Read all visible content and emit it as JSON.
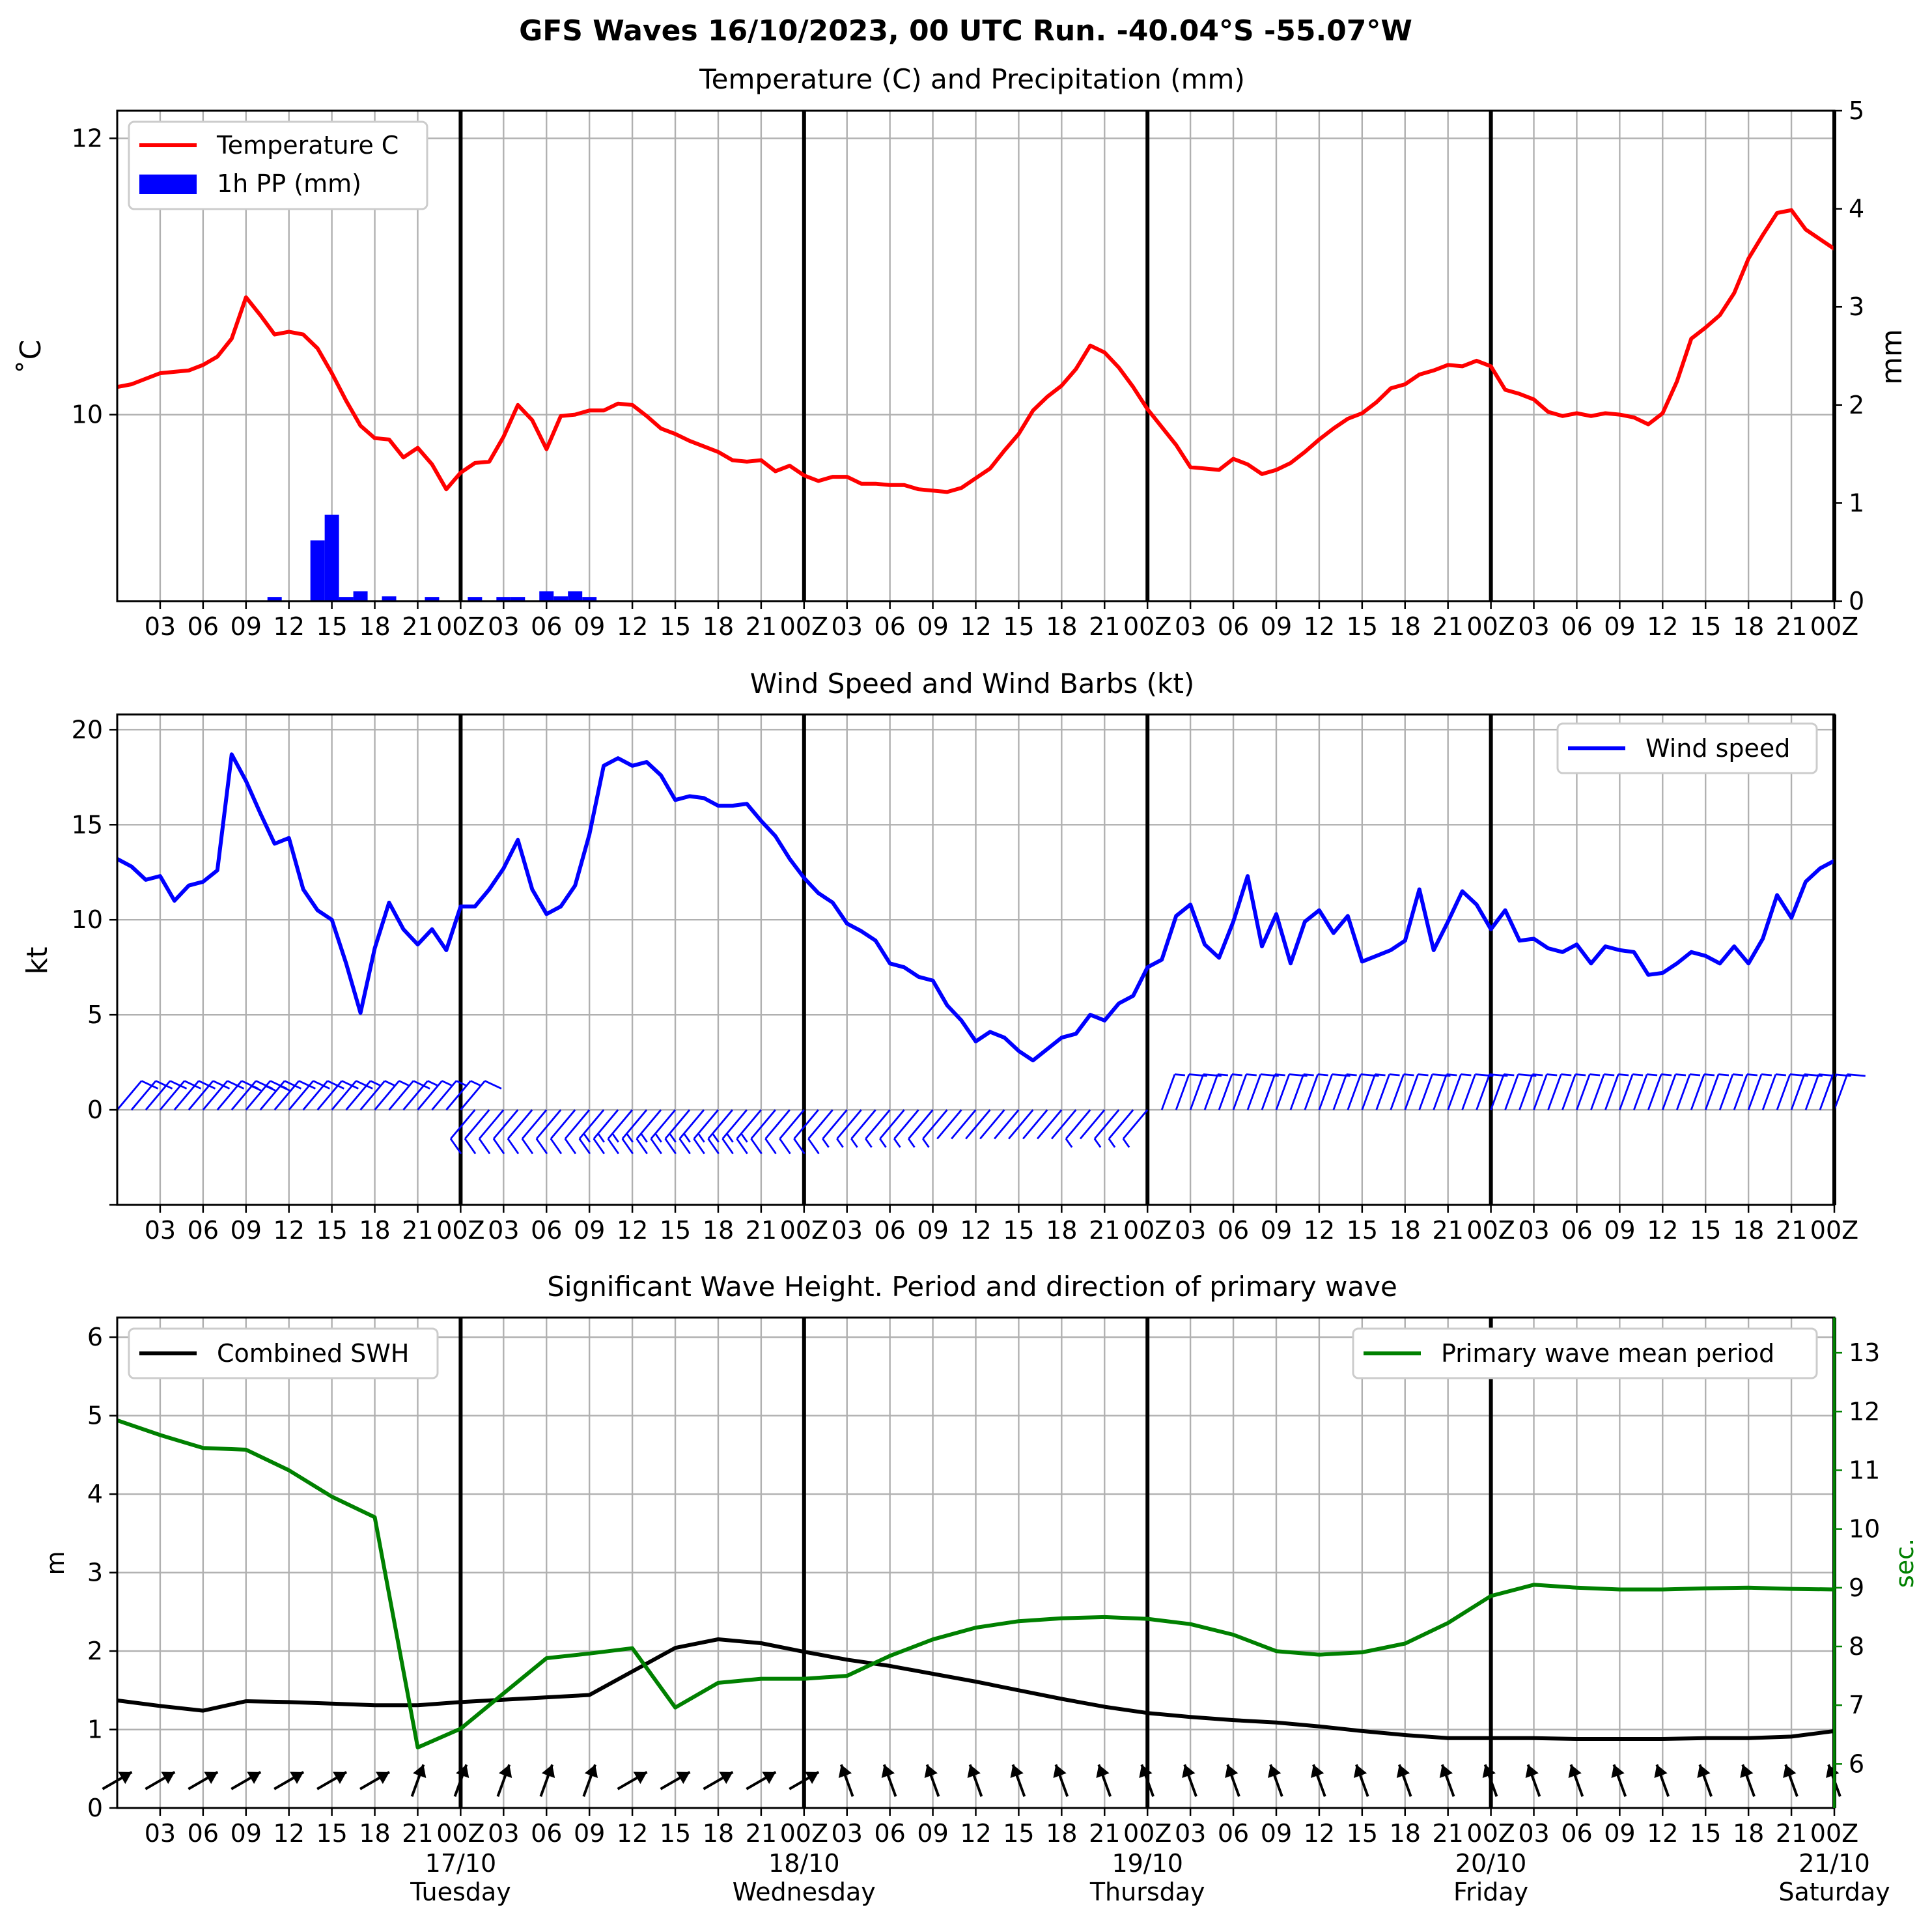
{
  "figure_title": "GFS Waves 16/10/2023, 00 UTC Run. -40.04°S -55.07°W",
  "x_ticks": [
    "03",
    "06",
    "09",
    "12",
    "15",
    "18",
    "21",
    "00Z",
    "03",
    "06",
    "09",
    "12",
    "15",
    "18",
    "21",
    "00Z",
    "03",
    "06",
    "09",
    "12",
    "15",
    "18",
    "21",
    "00Z",
    "03",
    "06",
    "09",
    "12",
    "15",
    "18",
    "21",
    "00Z",
    "03",
    "06",
    "09",
    "12",
    "15",
    "18",
    "21",
    "00Z"
  ],
  "day_labels": [
    {
      "date": "17/10",
      "day": "Tuesday"
    },
    {
      "date": "18/10",
      "day": "Wednesday"
    },
    {
      "date": "19/10",
      "day": "Thursday"
    },
    {
      "date": "20/10",
      "day": "Friday"
    },
    {
      "date": "21/10",
      "day": "Saturday"
    }
  ],
  "colors": {
    "temperature": "#ff0000",
    "precip": "#0000ff",
    "wind": "#0000ff",
    "swh": "#000000",
    "period": "#008000"
  },
  "chart_data": [
    {
      "type": "line",
      "title": "Temperature (C) and Precipitation (mm)",
      "ylabel": "˚C",
      "ylabel_right": "mm",
      "x_hours_range": [
        0,
        120
      ],
      "ylim": [
        8.65,
        12.2
      ],
      "ylim_right": [
        0,
        5
      ],
      "yticks": [
        10,
        12
      ],
      "yticks_right": [
        0,
        1,
        2,
        3,
        4,
        5
      ],
      "legend": {
        "placement": "upper-left",
        "entries": [
          "Temperature C",
          "1h PP (mm)"
        ]
      },
      "grid": true,
      "series": [
        {
          "name": "Temperature C",
          "color": "#ff0000",
          "x": [
            0,
            1,
            2,
            3,
            4,
            5,
            6,
            7,
            8,
            9,
            10,
            11,
            12,
            13,
            14,
            15,
            16,
            17,
            18,
            19,
            20,
            21,
            22,
            23,
            24,
            25,
            26,
            27,
            28,
            29,
            30,
            31,
            32,
            33,
            34,
            35,
            36,
            37,
            38,
            39,
            40,
            41,
            42,
            43,
            44,
            45,
            46,
            47,
            48,
            49,
            50,
            51,
            52,
            53,
            54,
            55,
            56,
            57,
            58,
            59,
            60,
            61,
            62,
            63,
            64,
            65,
            66,
            67,
            68,
            69,
            70,
            71,
            72,
            73,
            74,
            75,
            76,
            77,
            78,
            79,
            80,
            81,
            82,
            83,
            84,
            85,
            86,
            87,
            88,
            89,
            90,
            91,
            92,
            93,
            94,
            95,
            96,
            97,
            98,
            99,
            100,
            101,
            102,
            103,
            104,
            105,
            106,
            107,
            108,
            109,
            110,
            111,
            112,
            113,
            114,
            115,
            116,
            117,
            118,
            119,
            120
          ],
          "y": [
            10.2,
            10.22,
            10.26,
            10.3,
            10.31,
            10.32,
            10.36,
            10.42,
            10.55,
            10.85,
            10.72,
            10.58,
            10.6,
            10.58,
            10.48,
            10.3,
            10.1,
            9.92,
            9.83,
            9.82,
            9.69,
            9.76,
            9.64,
            9.46,
            9.58,
            9.65,
            9.66,
            9.84,
            10.07,
            9.96,
            9.75,
            9.99,
            10.0,
            10.03,
            10.03,
            10.08,
            10.07,
            9.99,
            9.9,
            9.86,
            9.81,
            9.77,
            9.73,
            9.67,
            9.66,
            9.67,
            9.59,
            9.63,
            9.56,
            9.52,
            9.55,
            9.55,
            9.5,
            9.5,
            9.49,
            9.49,
            9.46,
            9.45,
            9.44,
            9.47,
            9.54,
            9.61,
            9.74,
            9.86,
            10.03,
            10.13,
            10.21,
            10.33,
            10.5,
            10.45,
            10.34,
            10.2,
            10.04,
            9.91,
            9.78,
            9.62,
            9.61,
            9.6,
            9.68,
            9.64,
            9.57,
            9.6,
            9.65,
            9.73,
            9.82,
            9.9,
            9.97,
            10.01,
            10.09,
            10.19,
            10.22,
            10.29,
            10.32,
            10.36,
            10.35,
            10.39,
            10.35,
            10.18,
            10.15,
            10.11,
            10.02,
            9.99,
            10.01,
            9.99,
            10.01,
            10.0,
            9.98,
            9.93,
            10.01,
            10.24,
            10.55,
            10.63,
            10.72,
            10.88,
            11.13,
            11.3,
            11.46,
            11.48,
            11.34,
            11.27,
            11.2
          ]
        },
        {
          "name": "1h PP (mm)",
          "color": "#0000ff",
          "kind": "bar",
          "x": [
            11,
            12,
            13,
            14,
            15,
            16,
            17,
            18,
            19,
            20,
            21,
            22,
            23,
            24,
            25,
            26,
            27,
            28,
            29,
            30,
            31,
            32,
            33,
            34
          ],
          "y": [
            0.04,
            0,
            0,
            0.62,
            0.88,
            0.04,
            0.1,
            0,
            0.05,
            0,
            0,
            0.04,
            0,
            0,
            0.04,
            0,
            0.04,
            0.04,
            0,
            0.1,
            0.05,
            0.1,
            0.04,
            0
          ]
        }
      ]
    },
    {
      "type": "line",
      "title": "Wind Speed and Wind Barbs (kt)",
      "ylabel": "kt",
      "x_hours_range": [
        0,
        120
      ],
      "ylim": [
        -5,
        20.8
      ],
      "yticks": [
        0,
        5,
        10,
        15,
        20
      ],
      "legend": {
        "placement": "upper-right",
        "entries": [
          "Wind speed"
        ]
      },
      "grid": true,
      "series": [
        {
          "name": "Wind speed",
          "color": "#0000ff",
          "x": [
            0,
            1,
            2,
            3,
            4,
            5,
            6,
            7,
            8,
            9,
            10,
            11,
            12,
            13,
            14,
            15,
            16,
            17,
            18,
            19,
            20,
            21,
            22,
            23,
            24,
            25,
            26,
            27,
            28,
            29,
            30,
            31,
            32,
            33,
            34,
            35,
            36,
            37,
            38,
            39,
            40,
            41,
            42,
            43,
            44,
            45,
            46,
            47,
            48,
            49,
            50,
            51,
            52,
            53,
            54,
            55,
            56,
            57,
            58,
            59,
            60,
            61,
            62,
            63,
            64,
            65,
            66,
            67,
            68,
            69,
            70,
            71,
            72,
            73,
            74,
            75,
            76,
            77,
            78,
            79,
            80,
            81,
            82,
            83,
            84,
            85,
            86,
            87,
            88,
            89,
            90,
            91,
            92,
            93,
            94,
            95,
            96,
            97,
            98,
            99,
            100,
            101,
            102,
            103,
            104,
            105,
            106,
            107,
            108,
            109,
            110,
            111,
            112,
            113,
            114,
            115,
            116,
            117,
            118,
            119,
            120
          ],
          "y": [
            13.2,
            12.8,
            12.1,
            12.3,
            11.0,
            11.8,
            12.0,
            12.6,
            18.7,
            17.3,
            15.6,
            14.0,
            14.3,
            11.6,
            10.5,
            10.0,
            7.7,
            5.1,
            8.5,
            10.9,
            9.5,
            8.7,
            9.5,
            8.4,
            10.7,
            10.7,
            11.6,
            12.7,
            14.2,
            11.6,
            10.3,
            10.7,
            11.8,
            14.5,
            18.1,
            18.5,
            18.1,
            18.3,
            17.6,
            16.3,
            16.5,
            16.4,
            16.0,
            16.0,
            16.1,
            15.2,
            14.4,
            13.2,
            12.2,
            11.4,
            10.9,
            9.8,
            9.4,
            8.9,
            7.7,
            7.5,
            7.0,
            6.8,
            5.5,
            4.7,
            3.6,
            4.1,
            3.8,
            3.1,
            2.6,
            3.2,
            3.8,
            4.0,
            5.0,
            4.7,
            5.6,
            6.0,
            7.5,
            7.9,
            10.2,
            10.8,
            8.7,
            8.0,
            9.9,
            12.3,
            8.6,
            10.3,
            7.7,
            9.9,
            10.5,
            9.3,
            10.2,
            7.8,
            8.1,
            8.4,
            8.9,
            11.6,
            8.4,
            9.9,
            11.5,
            10.8,
            9.5,
            10.5,
            8.9,
            9.0,
            8.5,
            8.3,
            8.7,
            7.7,
            8.6,
            8.4,
            8.3,
            7.1,
            7.2,
            7.7,
            8.3,
            8.1,
            7.7,
            8.6,
            7.7,
            9.0,
            11.3,
            10.1,
            12.0,
            12.7,
            13.1
          ]
        }
      ],
      "barbs_dir_deg": [
        40,
        40,
        40,
        40,
        40,
        40,
        40,
        40,
        40,
        40,
        40,
        40,
        40,
        40,
        40,
        40,
        40,
        40,
        40,
        40,
        40,
        40,
        40,
        40,
        40,
        220,
        220,
        220,
        220,
        220,
        220,
        220,
        220,
        220,
        220,
        220,
        220,
        220,
        220,
        220,
        220,
        220,
        220,
        220,
        220,
        220,
        220,
        220,
        220,
        220,
        220,
        220,
        220,
        220,
        220,
        220,
        220,
        220,
        220,
        220,
        220,
        220,
        220,
        220,
        220,
        220,
        220,
        220,
        220,
        220,
        220,
        220,
        220,
        20,
        20,
        20,
        20,
        20,
        20,
        20,
        20,
        20,
        20,
        20,
        20,
        20,
        20,
        20,
        20,
        20,
        20,
        20,
        20,
        20,
        20,
        20,
        20,
        20,
        20,
        20,
        20,
        20,
        20,
        20,
        20,
        20,
        20,
        20,
        20,
        20,
        20,
        20,
        20,
        20,
        20,
        20,
        20,
        20,
        20,
        20,
        20
      ]
    },
    {
      "type": "line",
      "title": "Significant Wave Height. Period and direction of primary wave",
      "ylabel": "m",
      "ylabel_right": "sec.",
      "x_hours_range": [
        0,
        120
      ],
      "ylim": [
        0,
        6.25
      ],
      "ylim_right": [
        5.25,
        13.6
      ],
      "yticks": [
        0,
        1,
        2,
        3,
        4,
        5,
        6
      ],
      "yticks_right": [
        6,
        7,
        8,
        9,
        10,
        11,
        12,
        13
      ],
      "legend": [
        {
          "placement": "upper-left",
          "entries": [
            "Combined SWH"
          ]
        },
        {
          "placement": "upper-right",
          "entries": [
            "Primary wave mean period"
          ]
        }
      ],
      "grid": true,
      "series": [
        {
          "name": "Combined SWH",
          "color": "#000000",
          "x": [
            0,
            3,
            6,
            9,
            12,
            15,
            18,
            21,
            24,
            27,
            30,
            33,
            36,
            39,
            42,
            45,
            48,
            51,
            54,
            57,
            60,
            63,
            66,
            69,
            72,
            75,
            78,
            81,
            84,
            87,
            90,
            93,
            96,
            99,
            102,
            105,
            108,
            111,
            114,
            117,
            120
          ],
          "y": [
            1.37,
            1.3,
            1.24,
            1.36,
            1.35,
            1.33,
            1.31,
            1.31,
            1.35,
            1.38,
            1.41,
            1.44,
            1.74,
            2.04,
            2.15,
            2.1,
            1.99,
            1.89,
            1.81,
            1.71,
            1.61,
            1.5,
            1.39,
            1.29,
            1.21,
            1.16,
            1.12,
            1.09,
            1.04,
            0.98,
            0.93,
            0.89,
            0.89,
            0.89,
            0.88,
            0.88,
            0.88,
            0.89,
            0.89,
            0.91,
            0.98
          ]
        },
        {
          "name": "Primary wave mean period",
          "color": "#008000",
          "axis": "right",
          "x": [
            0,
            3,
            6,
            9,
            12,
            15,
            18,
            21,
            24,
            27,
            30,
            33,
            36,
            39,
            42,
            45,
            48,
            51,
            54,
            57,
            60,
            63,
            66,
            69,
            72,
            75,
            78,
            81,
            84,
            87,
            90,
            93,
            96,
            99,
            102,
            105,
            108,
            111,
            114,
            117,
            120
          ],
          "y": [
            11.85,
            11.6,
            11.38,
            11.35,
            11.0,
            10.55,
            10.2,
            6.28,
            6.6,
            7.2,
            7.8,
            7.88,
            7.97,
            6.96,
            7.38,
            7.45,
            7.45,
            7.5,
            7.84,
            8.12,
            8.32,
            8.43,
            8.48,
            8.5,
            8.47,
            8.38,
            8.2,
            7.92,
            7.86,
            7.9,
            8.05,
            8.4,
            8.86,
            9.05,
            9.0,
            8.97,
            8.97,
            8.99,
            9.0,
            8.98,
            8.97
          ]
        }
      ],
      "arrow_dir_deg": [
        30,
        30,
        30,
        30,
        30,
        30,
        30,
        70,
        70,
        70,
        70,
        70,
        30,
        30,
        30,
        30,
        30,
        110,
        110,
        110,
        110,
        110,
        110,
        110,
        110,
        110,
        110,
        110,
        110,
        110,
        110,
        110,
        110,
        110,
        110,
        110,
        110,
        110,
        110,
        110,
        110
      ]
    }
  ]
}
